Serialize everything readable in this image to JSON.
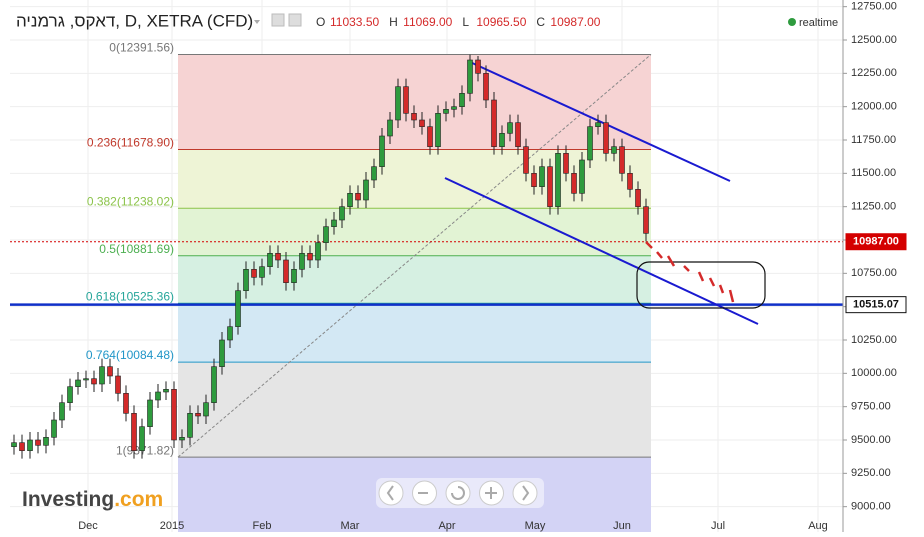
{
  "chart_data": {
    "type": "candlestick",
    "title": "דאקס, גרמניה, D, XETRA (CFD)",
    "quote": [
      {
        "key": "O",
        "price": {
          "value": 11033.5,
          "label": "11033.50"
        }
      },
      {
        "key": "H",
        "price": {
          "value": 11069,
          "label": "11069.00"
        }
      },
      {
        "key": "L",
        "price": {
          "value": 10965.5,
          "label": "10965.50"
        }
      },
      {
        "key": "C",
        "price": {
          "value": 10987,
          "label": "10987.00"
        }
      }
    ],
    "status": "realtime",
    "brand": "Investing",
    "brand_suffix": ".com",
    "colors": {
      "up": "#2e9b3e",
      "down": "#d42a2a"
    },
    "open": [
      9450,
      9480,
      9420,
      9500,
      9460,
      9520,
      9650,
      9780,
      9900,
      9950,
      9960,
      9920,
      10050,
      9980,
      9850,
      9700,
      9420,
      9600,
      9800,
      9860,
      9880,
      9500,
      9520,
      9700,
      9680,
      9780,
      10050,
      10250,
      10350,
      10620,
      10780,
      10720,
      10800,
      10900,
      10850,
      10680,
      10780,
      10900,
      10850,
      10980,
      11100,
      11150,
      11250,
      11350,
      11300,
      11450,
      11550,
      11780,
      11900,
      12150,
      11950,
      11900,
      11850,
      11700,
      11950,
      11980,
      12000,
      12100,
      12350,
      12250,
      12050,
      11700,
      11800,
      11880,
      11700,
      11500,
      11400,
      11550,
      11250,
      11650,
      11500,
      11350,
      11600,
      11850,
      11880,
      11650,
      11700,
      11500,
      11380,
      11250
    ],
    "high": [
      9540,
      9540,
      9560,
      9560,
      9580,
      9710,
      9840,
      9960,
      10010,
      10020,
      10020,
      10110,
      10110,
      10040,
      9910,
      9760,
      9660,
      9860,
      9920,
      9940,
      9940,
      9580,
      9760,
      9760,
      9840,
      10110,
      10310,
      10410,
      10680,
      10840,
      10840,
      10860,
      10960,
      10960,
      10910,
      10840,
      10960,
      10960,
      11040,
      11160,
      11210,
      11310,
      11410,
      11410,
      11510,
      11610,
      11840,
      11960,
      12210,
      12210,
      12010,
      11960,
      11910,
      12010,
      12040,
      12060,
      12160,
      12390,
      12380,
      12310,
      12110,
      11860,
      11940,
      11940,
      11760,
      11560,
      11610,
      11610,
      11710,
      11710,
      11560,
      11660,
      11910,
      11940,
      11940,
      11760,
      11760,
      11560,
      11440,
      11310
    ],
    "low": [
      9390,
      9360,
      9360,
      9400,
      9400,
      9460,
      9590,
      9720,
      9840,
      9890,
      9860,
      9860,
      9920,
      9790,
      9640,
      9360,
      9360,
      9540,
      9740,
      9800,
      9440,
      9440,
      9460,
      9620,
      9620,
      9720,
      9990,
      10190,
      10290,
      10560,
      10660,
      10660,
      10740,
      10790,
      10620,
      10620,
      10720,
      10790,
      10790,
      10920,
      11040,
      11090,
      11190,
      11240,
      11240,
      11390,
      11490,
      11720,
      11840,
      11890,
      11840,
      11790,
      11640,
      11640,
      11890,
      11920,
      11940,
      12040,
      12190,
      11990,
      11640,
      11640,
      11740,
      11640,
      11440,
      11340,
      11340,
      11190,
      11190,
      11440,
      11290,
      11290,
      11540,
      11790,
      11590,
      11590,
      11440,
      11320,
      11190,
      10990
    ],
    "close": [
      9480,
      9420,
      9500,
      9460,
      9520,
      9650,
      9780,
      9900,
      9950,
      9960,
      9920,
      10050,
      9980,
      9850,
      9700,
      9420,
      9600,
      9800,
      9860,
      9880,
      9500,
      9520,
      9700,
      9680,
      9780,
      10050,
      10250,
      10350,
      10620,
      10780,
      10720,
      10800,
      10900,
      10850,
      10680,
      10780,
      10900,
      10850,
      10980,
      11100,
      11150,
      11250,
      11350,
      11300,
      11450,
      11550,
      11780,
      11900,
      12150,
      11950,
      11900,
      11850,
      11700,
      11950,
      11980,
      12000,
      12100,
      12350,
      12250,
      12050,
      11700,
      11800,
      11880,
      11700,
      11500,
      11400,
      11550,
      11250,
      11650,
      11500,
      11350,
      11600,
      11850,
      11880,
      11650,
      11700,
      11500,
      11380,
      11250,
      11050
    ],
    "xlim": [
      -0.5,
      103.625
    ],
    "xticks": [
      {
        "value": 9.25,
        "label": "Dec"
      },
      {
        "value": 19.75,
        "label": "2015"
      },
      {
        "value": 31,
        "label": "Feb"
      },
      {
        "value": 42,
        "label": "Mar"
      },
      {
        "value": 54.125,
        "label": "Apr"
      },
      {
        "value": 65.125,
        "label": "May"
      },
      {
        "value": 76,
        "label": "Jun"
      },
      {
        "value": 88,
        "label": "Jul"
      },
      {
        "value": 100.5,
        "label": "Aug"
      }
    ],
    "ylim": [
      8900,
      12800
    ],
    "yticks": [
      {
        "value": 9000,
        "label": "9000.00"
      },
      {
        "value": 9250,
        "label": "9250.00"
      },
      {
        "value": 9500,
        "label": "9500.00"
      },
      {
        "value": 9750,
        "label": "9750.00"
      },
      {
        "value": 10000,
        "label": "10000.00"
      },
      {
        "value": 10250,
        "label": "10250.00"
      },
      {
        "value": 10500,
        "label": "10500.00"
      },
      {
        "value": 10750,
        "label": "10750.00"
      },
      {
        "value": 11000,
        "label": "11000.00"
      },
      {
        "value": 11250,
        "label": "11250.00"
      },
      {
        "value": 11500,
        "label": "11500.00"
      },
      {
        "value": 11750,
        "label": "11750.00"
      },
      {
        "value": 12000,
        "label": "12000.00"
      },
      {
        "value": 12250,
        "label": "12250.00"
      },
      {
        "value": 12500,
        "label": "12500.00"
      },
      {
        "value": 12750,
        "label": "12750.00"
      }
    ],
    "fib_levels": [
      {
        "value": 12391.56,
        "label": "0(12391.56)",
        "color": "#777777",
        "fill": "#f6d3d3"
      },
      {
        "value": 11678.9,
        "label": "0.236(11678.90)",
        "color": "#c0392b",
        "fill": "#eef4d6"
      },
      {
        "value": 11238.02,
        "label": "0.382(11238.02)",
        "color": "#8bc34a",
        "fill": "#e2f3d4"
      },
      {
        "value": 10881.69,
        "label": "0.5(10881.69)",
        "color": "#4caf50",
        "fill": "#d6f0e2"
      },
      {
        "value": 10525.36,
        "label": "0.618(10525.36)",
        "color": "#26a69a",
        "fill": "#d3e8f4"
      },
      {
        "value": 10084.48,
        "label": "0.764(10084.48)",
        "color": "#2196c8",
        "fill": "#e5e5e5"
      },
      {
        "value": 9371.82,
        "label": "1(9371.82)",
        "color": "#777777",
        "fill": "#d3d3f5"
      }
    ],
    "price_lines": [
      {
        "value": 10987,
        "label": "10987.00",
        "color": "#d40000",
        "style": "dotted"
      },
      {
        "value": 10515.07,
        "label": "10515.07",
        "color": "#1030c8",
        "style": "solid"
      }
    ]
  }
}
